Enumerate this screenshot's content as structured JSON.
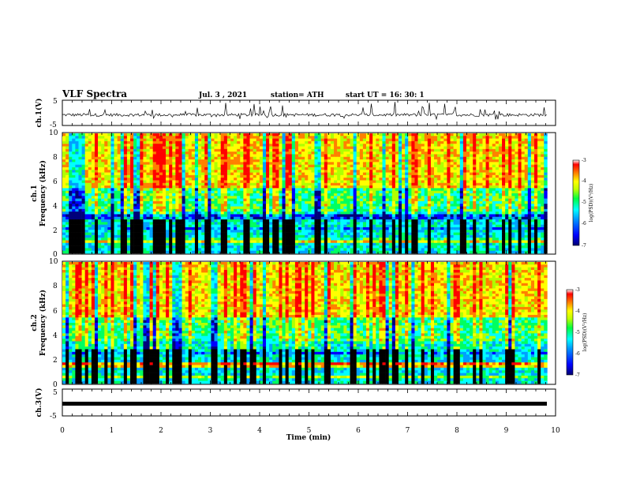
{
  "header": {
    "title": "VLF Spectra",
    "date": "Jul. 3 , 2021",
    "station": "station= ATH",
    "start": "start UT = 16: 30: 1"
  },
  "colors": {
    "background": "#ffffff",
    "axes": "#000000",
    "colormap": [
      "#00007a",
      "#0000ff",
      "#00a0ff",
      "#00ffff",
      "#00ff60",
      "#b0ff00",
      "#ffff00",
      "#ff8000",
      "#ff0000"
    ]
  },
  "chart_data": [
    {
      "type": "line",
      "panel": "ch1-waveform",
      "ylabel": "ch.1(V)",
      "ylim": [
        -5,
        5
      ],
      "y_ticks": [
        "5",
        "-5"
      ],
      "xlim": [
        0,
        10
      ],
      "description_values": {
        "baseline_v": -0.8,
        "noise_amplitude_v": 1.2,
        "spike_amplitude_v": 3.5
      }
    },
    {
      "type": "heatmap",
      "panel": "ch1-spectrogram",
      "ylabel": "ch.1\nFrequency (kHz)",
      "ylim": [
        0,
        10
      ],
      "y_ticks": [
        "0",
        "2",
        "4",
        "6",
        "8",
        "10"
      ],
      "xlim": [
        0,
        9.83
      ],
      "colorbar": {
        "label": "log(PSD)(V²/Hz)",
        "range": [
          -7,
          -3
        ],
        "ticks": [
          "-3",
          "-4",
          "-5",
          "-6",
          "-7"
        ]
      }
    },
    {
      "type": "heatmap",
      "panel": "ch2-spectrogram",
      "ylabel": "ch.2\nFrequency (kHz)",
      "ylim": [
        0,
        10
      ],
      "y_ticks": [
        "0",
        "2",
        "4",
        "6",
        "8",
        "10"
      ],
      "xlim": [
        0,
        9.83
      ],
      "colorbar": {
        "label": "log(PSD)(V²/Hz)",
        "range": [
          -7,
          -3
        ],
        "ticks": [
          "-3",
          "-4",
          "-5",
          "-6",
          "-7"
        ]
      }
    },
    {
      "type": "line",
      "panel": "ch3-waveform",
      "ylabel": "ch.3(V)",
      "ylim": [
        -5,
        5
      ],
      "y_ticks": [
        "5",
        "-5"
      ],
      "xlim": [
        0,
        10
      ],
      "description_values": {
        "baseline_v": -1.0
      }
    }
  ],
  "xaxis": {
    "label": "Time (min)",
    "range": [
      0,
      10
    ],
    "ticks": [
      "0",
      "1",
      "2",
      "3",
      "4",
      "5",
      "6",
      "7",
      "8",
      "9",
      "10"
    ]
  }
}
